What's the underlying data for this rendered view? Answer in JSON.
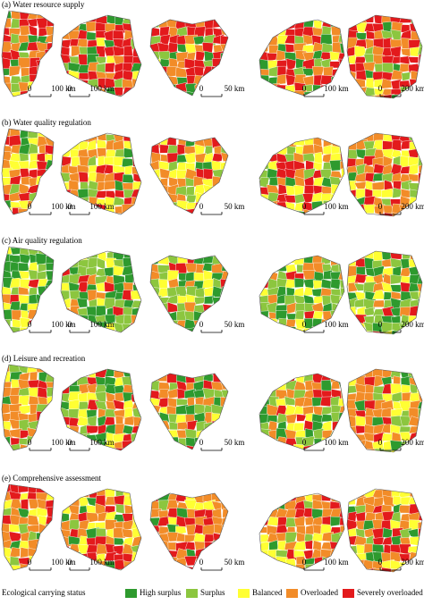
{
  "rows": [
    {
      "title": "(a) Water resource supply",
      "scale_bars": [
        {
          "start": "0",
          "end": "100 km"
        },
        {
          "start": "0",
          "end": "100 km"
        },
        {
          "start": "0",
          "end": "50 km"
        },
        {
          "start": "0",
          "end": "100 km"
        },
        {
          "start": "0",
          "end": "200 km"
        }
      ]
    },
    {
      "title": "(b) Water quality regulation",
      "scale_bars": [
        {
          "start": "0",
          "end": "100 km"
        },
        {
          "start": "0",
          "end": "100 km"
        },
        {
          "start": "0",
          "end": "50 km"
        },
        {
          "start": "0",
          "end": "100 km"
        },
        {
          "start": "0",
          "end": "200 km"
        }
      ]
    },
    {
      "title": "(c) Air quality regulation",
      "scale_bars": [
        {
          "start": "0",
          "end": "100 km"
        },
        {
          "start": "0",
          "end": "100 km"
        },
        {
          "start": "0",
          "end": "50 km"
        },
        {
          "start": "0",
          "end": "100 km"
        },
        {
          "start": "0",
          "end": "200 km"
        }
      ]
    },
    {
      "title": "(d) Leisure and recreation",
      "scale_bars": [
        {
          "start": "0",
          "end": "100 km"
        },
        {
          "start": "0",
          "end": "100 km"
        },
        {
          "start": "0",
          "end": "50 km"
        },
        {
          "start": "0",
          "end": "100 km"
        },
        {
          "start": "0",
          "end": "200 km"
        }
      ]
    },
    {
      "title": "(e) Comprehensive assessment",
      "scale_bars": [
        {
          "start": "0",
          "end": "100 km"
        },
        {
          "start": "0",
          "end": "100 km"
        },
        {
          "start": "0",
          "end": "50 km"
        },
        {
          "start": "0",
          "end": "100 km"
        },
        {
          "start": "0",
          "end": "200 km"
        }
      ]
    }
  ],
  "legend": {
    "title": "Ecological carrying status",
    "items": [
      {
        "label": "High surplus",
        "color": "#2e9a2e"
      },
      {
        "label": "Surplus",
        "color": "#8cc63f"
      },
      {
        "label": "Balanced",
        "color": "#ffff33"
      },
      {
        "label": "Overloaded",
        "color": "#f28c28"
      },
      {
        "label": "Severely overloaded",
        "color": "#e31a1c"
      }
    ]
  }
}
